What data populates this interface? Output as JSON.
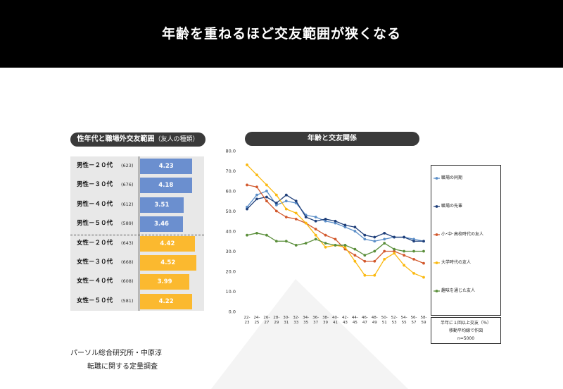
{
  "title": "年齢を重ねるほど交友範囲が狭くなる",
  "left_chart": {
    "title_main": "性年代と職場外交友範囲",
    "title_sub": "（友人の種類）",
    "max_value": 5,
    "rows": [
      {
        "label": "男性－２０代",
        "n": "(623)",
        "value": 4.23,
        "display": "4.23",
        "color": "#6b8fcf"
      },
      {
        "label": "男性－３０代",
        "n": "(676)",
        "value": 4.18,
        "display": "4.18",
        "color": "#6b8fcf"
      },
      {
        "label": "男性－４０代",
        "n": "(612)",
        "value": 3.51,
        "display": "3.51",
        "color": "#6b8fcf"
      },
      {
        "label": "男性－５０代",
        "n": "(589)",
        "value": 3.46,
        "display": "3.46",
        "color": "#6b8fcf"
      },
      {
        "label": "女性－２０代",
        "n": "(643)",
        "value": 4.42,
        "display": "4.42",
        "color": "#fbb92f"
      },
      {
        "label": "女性－３０代",
        "n": "(668)",
        "value": 4.52,
        "display": "4.52",
        "color": "#fbb92f"
      },
      {
        "label": "女性－４０代",
        "n": "(608)",
        "value": 3.99,
        "display": "3.99",
        "color": "#fbb92f"
      },
      {
        "label": "女性－５０代",
        "n": "(581)",
        "value": 4.22,
        "display": "4.22",
        "color": "#fbb92f"
      }
    ]
  },
  "chart_data": {
    "type": "line",
    "title": "年齢と交友関係",
    "ylim": [
      0,
      80
    ],
    "yticks": [
      "0.0",
      "10.0",
      "20.0",
      "30.0",
      "40.0",
      "50.0",
      "60.0",
      "70.0",
      "80.0"
    ],
    "grid": false,
    "legend_position": "right",
    "categories": [
      [
        "22-",
        "23"
      ],
      [
        "24-",
        "25"
      ],
      [
        "26-",
        "27"
      ],
      [
        "28-",
        "29"
      ],
      [
        "30-",
        "31"
      ],
      [
        "32-",
        "33"
      ],
      [
        "34-",
        "35"
      ],
      [
        "36-",
        "37"
      ],
      [
        "38-",
        "39"
      ],
      [
        "40-",
        "41"
      ],
      [
        "42-",
        "43"
      ],
      [
        "44-",
        "45"
      ],
      [
        "46-",
        "47"
      ],
      [
        "48-",
        "49"
      ],
      [
        "50-",
        "51"
      ],
      [
        "52-",
        "53"
      ],
      [
        "54-",
        "55"
      ],
      [
        "56-",
        "57"
      ],
      [
        "58-",
        "59"
      ]
    ],
    "series": [
      {
        "name": "職場の同期",
        "color": "#5b8ec8",
        "values": [
          52,
          58,
          60,
          53,
          55,
          54,
          48,
          47,
          45,
          44,
          42,
          40,
          36,
          35,
          36,
          37,
          37,
          36,
          35
        ]
      },
      {
        "name": "職場の先輩",
        "color": "#1f3f7a",
        "values": [
          51,
          56,
          57,
          54,
          58,
          55,
          47,
          45,
          46,
          45,
          43,
          42,
          38,
          37,
          39,
          37,
          37,
          35,
          35
        ]
      },
      {
        "name": "小･中･高校時代の友人",
        "color": "#d2582c",
        "values": [
          63,
          62,
          55,
          50,
          47,
          46,
          44,
          41,
          38,
          36,
          31,
          28,
          25,
          25,
          30,
          30,
          28,
          26,
          24
        ]
      },
      {
        "name": "大学時代の友人",
        "color": "#fbb910",
        "values": [
          73,
          68,
          63,
          58,
          51,
          49,
          44,
          38,
          32,
          33,
          32,
          25,
          18,
          18,
          26,
          29,
          23,
          19,
          17
        ]
      },
      {
        "name": "趣味を通じた友人",
        "color": "#5a8e3a",
        "values": [
          38,
          39,
          38,
          35,
          35,
          33,
          34,
          36,
          34,
          33,
          33,
          31,
          28,
          30,
          34,
          31,
          30,
          30,
          30
        ]
      }
    ],
    "note": [
      "半年に１回以上交友（％）",
      "移動平均線で作図",
      "n=5000"
    ]
  },
  "source": {
    "line1": "パーソル総合研究所・中原淳",
    "line2": "転職に関する定量調査"
  }
}
